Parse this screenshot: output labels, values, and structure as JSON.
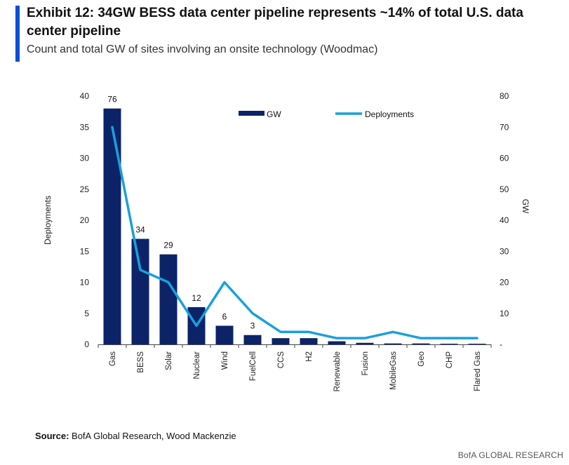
{
  "header": {
    "title": "Exhibit 12: 34GW BESS data center pipeline represents ~14% of total U.S. data center pipeline",
    "subtitle": "Count and total GW of sites involving an onsite technology (Woodmac)"
  },
  "footer": {
    "source_label": "Source:",
    "source_text": "BofA Global Research, Wood Mackenzie",
    "brand": "BofA GLOBAL RESEARCH"
  },
  "colors": {
    "bar": "#0c2368",
    "line": "#1aa0dc",
    "accent": "#0a4fd6"
  },
  "chart_data": {
    "type": "bar",
    "categories": [
      "Gas",
      "BESS",
      "Solar",
      "Nuclear",
      "Wind",
      "FuelCell",
      "CCS",
      "H2",
      "Renewable",
      "Fusion",
      "MobileGas",
      "Geo",
      "CHP",
      "Flared Gas"
    ],
    "series": [
      {
        "name": "GW",
        "type": "bar",
        "axis": "right",
        "values": [
          76,
          34,
          29,
          12,
          6,
          3,
          2,
          2,
          1,
          0.5,
          0.3,
          0.3,
          0.2,
          0.2
        ],
        "data_labels": [
          "76",
          "34",
          "29",
          "12",
          "6",
          "3",
          "",
          "",
          "",
          "",
          "",
          "",
          "",
          ""
        ]
      },
      {
        "name": "Deployments",
        "type": "line",
        "axis": "left",
        "values": [
          35,
          12,
          10,
          3,
          10,
          5,
          2,
          2,
          1,
          1,
          2,
          1,
          1,
          1
        ]
      }
    ],
    "left_axis": {
      "label": "Deployments",
      "range": [
        0,
        40
      ],
      "ticks": [
        "0",
        "5",
        "10",
        "15",
        "20",
        "25",
        "30",
        "35",
        "40"
      ]
    },
    "right_axis": {
      "label": "GW",
      "range": [
        0,
        80
      ],
      "ticks": [
        "-",
        "10",
        "20",
        "30",
        "40",
        "50",
        "60",
        "70",
        "80"
      ]
    },
    "legend": {
      "position": "top-center",
      "entries": [
        "GW",
        "Deployments"
      ]
    },
    "grid": false
  }
}
